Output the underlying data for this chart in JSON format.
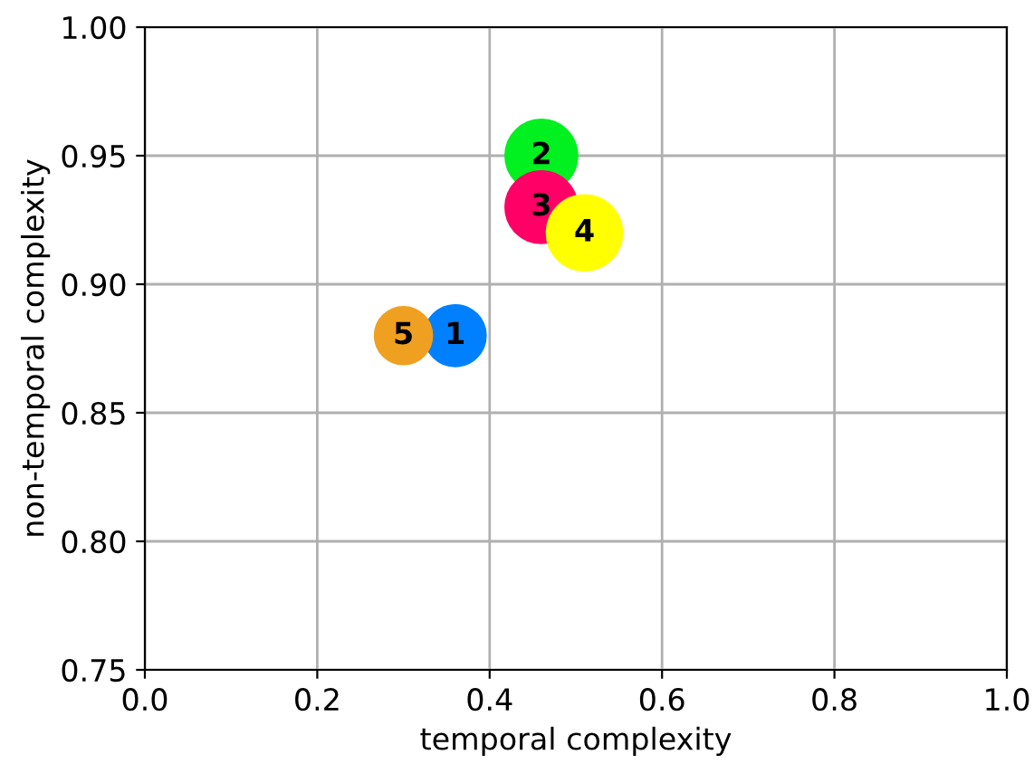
{
  "chart_data": {
    "type": "bubble",
    "xlabel": "temporal complexity",
    "ylabel": "non-temporal complexity",
    "x": [
      0.36,
      0.46,
      0.46,
      0.51,
      0.3
    ],
    "values": [
      0.88,
      0.95,
      0.93,
      0.92,
      0.88
    ],
    "sizes": [
      0.66,
      0.91,
      0.91,
      1,
      0.58
    ],
    "colors": [
      "#0080ff",
      "#00f020",
      "#ff0066",
      "#ffff00",
      "#f0a020"
    ],
    "annotations": [
      {
        "text": "1",
        "x": 0.36,
        "y": 0.88
      },
      {
        "text": "2",
        "x": 0.46,
        "y": 0.95
      },
      {
        "text": "3",
        "x": 0.46,
        "y": 0.93
      },
      {
        "text": "4",
        "x": 0.51,
        "y": 0.92
      },
      {
        "text": "5",
        "x": 0.3,
        "y": 0.88
      }
    ],
    "xlim": [
      0.0,
      1.0
    ],
    "xticks": [
      {
        "value": 0,
        "label": "0.0"
      },
      {
        "value": 0.2,
        "label": "0.2"
      },
      {
        "value": 0.4,
        "label": "0.4"
      },
      {
        "value": 0.6,
        "label": "0.6"
      },
      {
        "value": 0.8,
        "label": "0.8"
      },
      {
        "value": 1,
        "label": "1.0"
      }
    ],
    "ylim": [
      0.75,
      1.0
    ],
    "yticks": [
      {
        "value": 0.75,
        "label": "0.75"
      },
      {
        "value": 0.8,
        "label": "0.80"
      },
      {
        "value": 0.85,
        "label": "0.85"
      },
      {
        "value": 0.9,
        "label": "0.90"
      },
      {
        "value": 0.95,
        "label": "0.95"
      },
      {
        "value": 1.0,
        "label": "1.00"
      }
    ],
    "grid": true
  }
}
